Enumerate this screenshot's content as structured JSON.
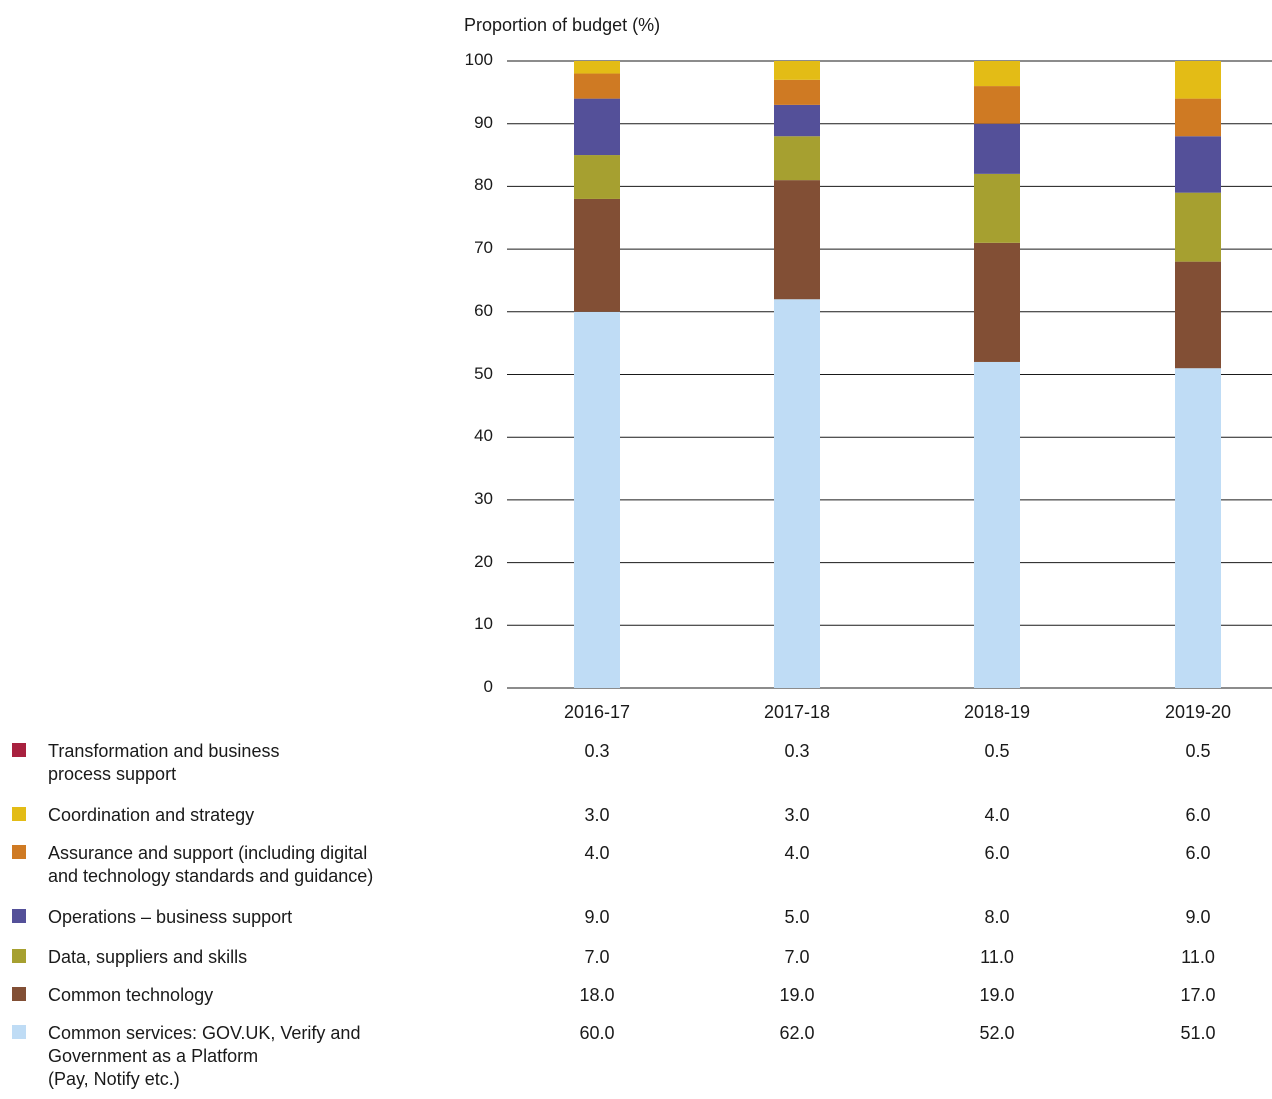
{
  "chart_data": {
    "type": "bar",
    "stacked": true,
    "ylabel": "Proportion of budget (%)",
    "ylim": [
      0,
      100
    ],
    "yticks": [
      "0",
      "10",
      "20",
      "30",
      "40",
      "50",
      "60",
      "70",
      "80",
      "90",
      "100"
    ],
    "grid": true,
    "categories": [
      "2016-17",
      "2017-18",
      "2018-19",
      "2019-20"
    ],
    "series": [
      {
        "name": "Common services: GOV.UK, Verify and Government as a Platform (Pay, Notify etc.)",
        "label_text": "Common services: GOV.UK, Verify and\nGovernment as a Platform\n(Pay, Notify etc.)",
        "color": "#bfdcf5",
        "values": [
          60.0,
          62.0,
          52.0,
          51.0
        ],
        "labels": [
          "60.0",
          "62.0",
          "52.0",
          "51.0"
        ]
      },
      {
        "name": "Common technology",
        "label_text": "Common technology",
        "color": "#824f35",
        "values": [
          18.0,
          19.0,
          19.0,
          17.0
        ],
        "labels": [
          "18.0",
          "19.0",
          "19.0",
          "17.0"
        ]
      },
      {
        "name": "Data, suppliers and skills",
        "label_text": "Data, suppliers and skills",
        "color": "#a6a030",
        "values": [
          7.0,
          7.0,
          11.0,
          11.0
        ],
        "labels": [
          "7.0",
          "7.0",
          "11.0",
          "11.0"
        ]
      },
      {
        "name": "Operations – business support",
        "label_text": "Operations – business support",
        "color": "#545099",
        "values": [
          9.0,
          5.0,
          8.0,
          9.0
        ],
        "labels": [
          "9.0",
          "5.0",
          "8.0",
          "9.0"
        ]
      },
      {
        "name": "Assurance and support (including digital and technology standards and guidance)",
        "label_text": "Assurance and support (including digital\nand technology standards and guidance)",
        "color": "#cf7a23",
        "values": [
          4.0,
          4.0,
          6.0,
          6.0
        ],
        "labels": [
          "4.0",
          "4.0",
          "6.0",
          "6.0"
        ]
      },
      {
        "name": "Coordination and strategy",
        "label_text": "Coordination and strategy",
        "color": "#e3bc16",
        "values": [
          3.0,
          3.0,
          4.0,
          6.0
        ],
        "labels": [
          "3.0",
          "3.0",
          "4.0",
          "6.0"
        ]
      },
      {
        "name": "Transformation and business process support",
        "label_text": "Transformation and business\nprocess support",
        "color": "#a8213f",
        "values": [
          0.3,
          0.3,
          0.5,
          0.5
        ],
        "labels": [
          "0.3",
          "0.3",
          "0.5",
          "0.5"
        ]
      }
    ],
    "legend_order": [
      6,
      5,
      4,
      3,
      2,
      1,
      0
    ]
  }
}
